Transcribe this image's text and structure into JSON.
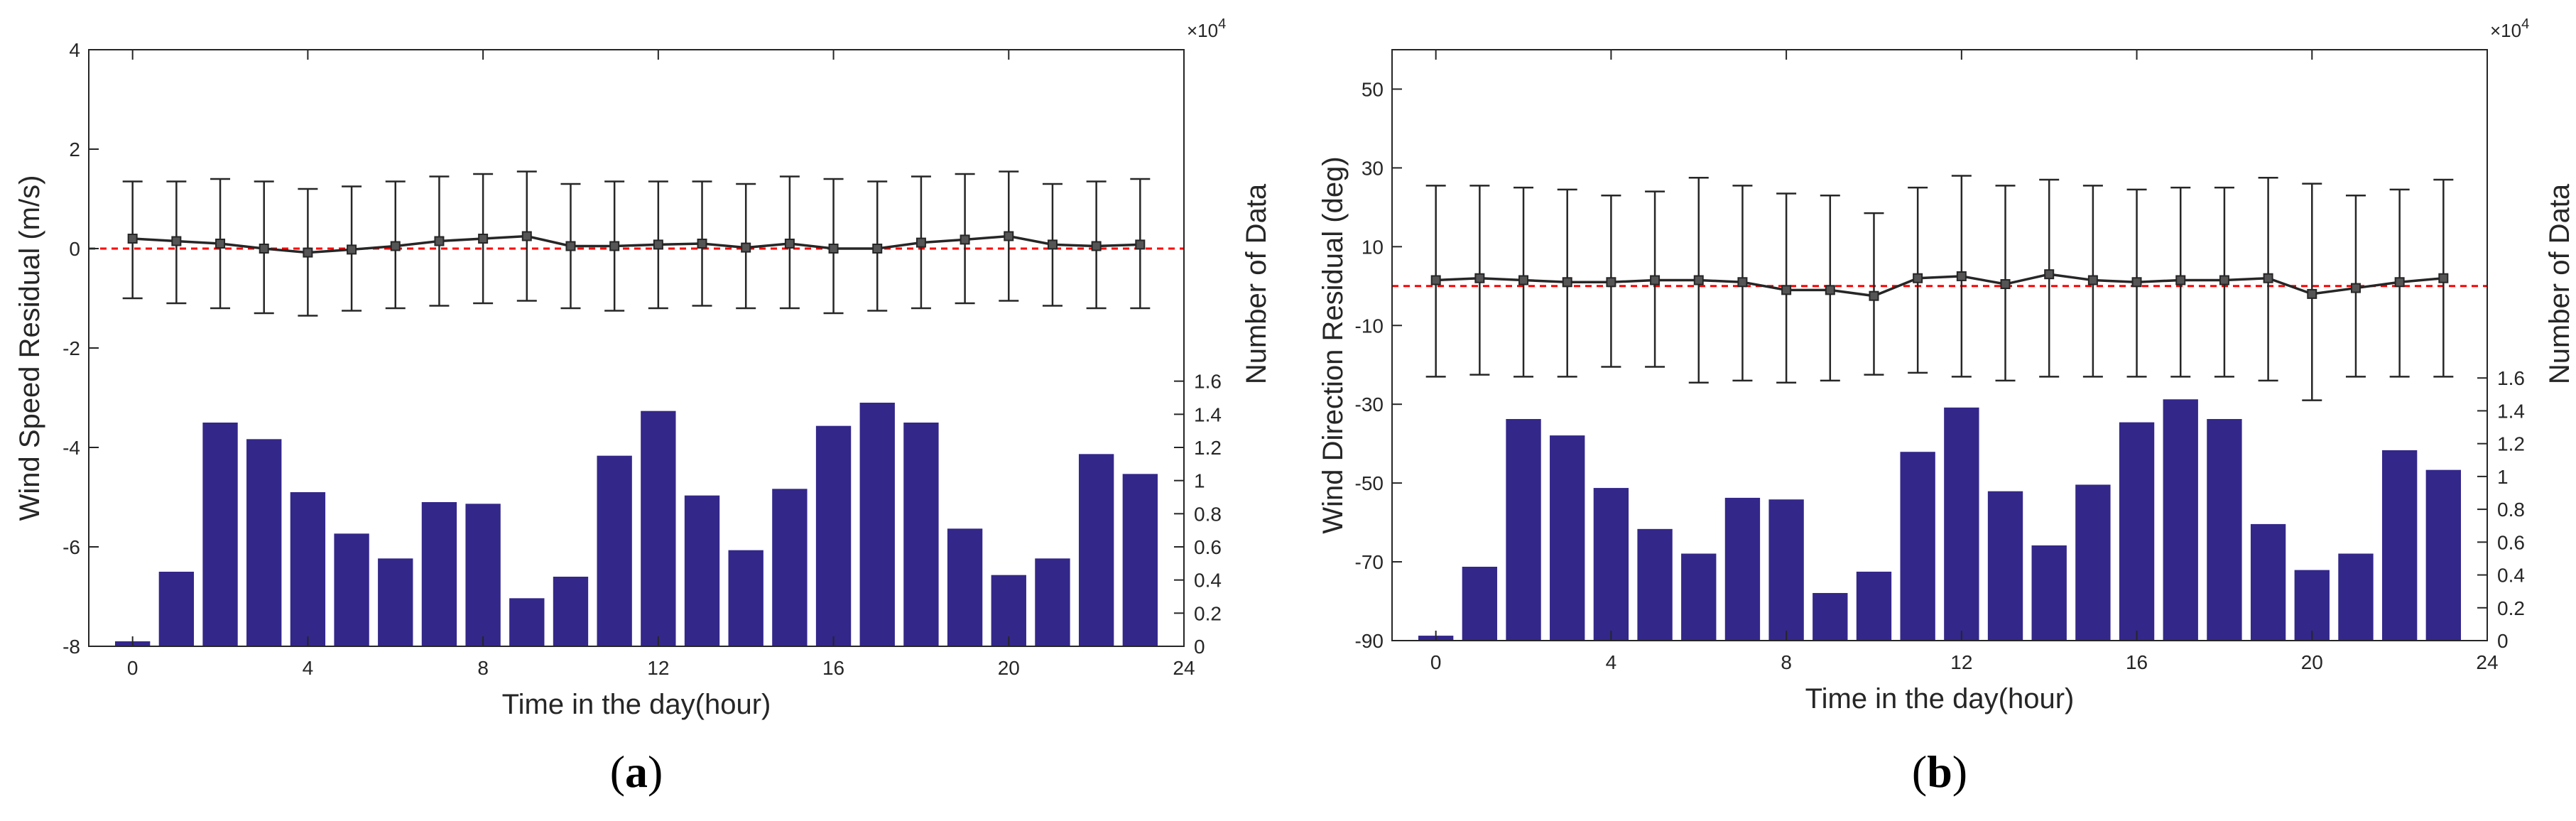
{
  "chart_data": [
    {
      "type": "bar",
      "panel_label": "(a)",
      "panel_letter": "a",
      "xlabel": "Time in the day(hour)",
      "ylabel": "Wind Speed Residual (m/s)",
      "ylabel_right": "Number of Data",
      "right_axis_multiplier": "×10",
      "right_axis_exponent": "4",
      "xlim": [
        -1,
        24
      ],
      "ylim": [
        -8,
        4
      ],
      "ylim_right": [
        0,
        3.6
      ],
      "x_ticks": [
        0,
        4,
        8,
        12,
        16,
        20,
        24
      ],
      "y_ticks": [
        -8,
        -6,
        -4,
        -2,
        0,
        2,
        4
      ],
      "y_ticks_right": [
        0,
        0.2,
        0.4,
        0.6,
        0.8,
        1,
        1.2,
        1.4,
        1.6
      ],
      "y_tick_labels_right": [
        "0",
        "0.2",
        "0.4",
        "0.6",
        "0.8",
        "1",
        "1.2",
        "1.4",
        "1.6"
      ],
      "grid": false,
      "reference_line": {
        "y": 0,
        "style": "dashed",
        "color": "#ff0000"
      },
      "series": [
        {
          "role": "mean",
          "kind": "line-errorbar",
          "color": "#262626",
          "x": [
            0,
            1,
            2,
            3,
            4,
            5,
            6,
            7,
            8,
            9,
            10,
            11,
            12,
            13,
            14,
            15,
            16,
            17,
            18,
            19,
            20,
            21,
            22,
            23
          ],
          "values": [
            0.2,
            0.15,
            0.1,
            0.0,
            -0.08,
            -0.02,
            0.05,
            0.15,
            0.2,
            0.25,
            0.05,
            0.05,
            0.08,
            0.1,
            0.02,
            0.1,
            0.0,
            0.0,
            0.12,
            0.18,
            0.25,
            0.08,
            0.05,
            0.08
          ],
          "lower": [
            -1.0,
            -1.1,
            -1.2,
            -1.3,
            -1.35,
            -1.25,
            -1.2,
            -1.15,
            -1.1,
            -1.05,
            -1.2,
            -1.25,
            -1.2,
            -1.15,
            -1.2,
            -1.2,
            -1.3,
            -1.25,
            -1.2,
            -1.1,
            -1.05,
            -1.15,
            -1.2,
            -1.2
          ],
          "upper": [
            1.35,
            1.35,
            1.4,
            1.35,
            1.2,
            1.25,
            1.35,
            1.45,
            1.5,
            1.55,
            1.3,
            1.35,
            1.35,
            1.35,
            1.3,
            1.45,
            1.4,
            1.35,
            1.45,
            1.5,
            1.55,
            1.3,
            1.35,
            1.4
          ]
        },
        {
          "role": "count",
          "kind": "bar",
          "axis": "right",
          "color": "#33278a",
          "x": [
            0,
            1,
            2,
            3,
            4,
            5,
            6,
            7,
            8,
            9,
            10,
            11,
            12,
            13,
            14,
            15,
            16,
            17,
            18,
            19,
            20,
            21,
            22,
            23
          ],
          "values": [
            0.03,
            0.45,
            1.35,
            1.25,
            0.93,
            0.68,
            0.53,
            0.87,
            0.86,
            0.29,
            0.42,
            1.15,
            1.42,
            0.91,
            0.58,
            0.95,
            1.33,
            1.47,
            1.35,
            0.71,
            0.43,
            0.53,
            1.16,
            1.04
          ]
        }
      ]
    },
    {
      "type": "bar",
      "panel_label": "(b)",
      "panel_letter": "b",
      "xlabel": "Time in the day(hour)",
      "ylabel": "Wind Direction Residual (deg)",
      "ylabel_right": "Number of Data",
      "right_axis_multiplier": "×10",
      "right_axis_exponent": "4",
      "xlim": [
        -1,
        24
      ],
      "ylim": [
        -90,
        60
      ],
      "ylim_right": [
        0,
        3.6
      ],
      "x_ticks": [
        0,
        4,
        8,
        12,
        16,
        20,
        24
      ],
      "y_ticks": [
        -90,
        -70,
        -50,
        -30,
        -10,
        10,
        30,
        50
      ],
      "y_ticks_right": [
        0,
        0.2,
        0.4,
        0.6,
        0.8,
        1,
        1.2,
        1.4,
        1.6
      ],
      "y_tick_labels_right": [
        "0",
        "0.2",
        "0.4",
        "0.6",
        "0.8",
        "1",
        "1.2",
        "1.4",
        "1.6"
      ],
      "grid": false,
      "reference_line": {
        "y": 0,
        "style": "dashed",
        "color": "#ff0000"
      },
      "series": [
        {
          "role": "mean",
          "kind": "line-errorbar",
          "color": "#262626",
          "x": [
            0,
            1,
            2,
            3,
            4,
            5,
            6,
            7,
            8,
            9,
            10,
            11,
            12,
            13,
            14,
            15,
            16,
            17,
            18,
            19,
            20,
            21,
            22,
            23
          ],
          "values": [
            1.5,
            2.0,
            1.5,
            1.0,
            1.0,
            1.5,
            1.5,
            1.0,
            -1.0,
            -1.0,
            -2.5,
            2.0,
            2.5,
            0.5,
            3.0,
            1.5,
            1.0,
            1.5,
            1.5,
            2.0,
            -2.0,
            -0.5,
            1.0,
            2.0
          ],
          "lower": [
            -23,
            -22.5,
            -23,
            -23,
            -20.5,
            -20.5,
            -24.5,
            -24,
            -24.5,
            -24,
            -22.5,
            -22,
            -23,
            -24,
            -23,
            -23,
            -23,
            -23,
            -23,
            -24,
            -29,
            -23,
            -23,
            -23
          ],
          "upper": [
            25.5,
            25.5,
            25,
            24.5,
            23,
            24,
            27.5,
            25.5,
            23.5,
            23,
            18.5,
            25,
            28,
            25.5,
            27,
            25.5,
            24.5,
            25,
            25,
            27.5,
            26,
            23,
            24.5,
            27
          ]
        },
        {
          "role": "count",
          "kind": "bar",
          "axis": "right",
          "color": "#33278a",
          "x": [
            0,
            1,
            2,
            3,
            4,
            5,
            6,
            7,
            8,
            9,
            10,
            11,
            12,
            13,
            14,
            15,
            16,
            17,
            18,
            19,
            20,
            21,
            22,
            23
          ],
          "values": [
            0.03,
            0.45,
            1.35,
            1.25,
            0.93,
            0.68,
            0.53,
            0.87,
            0.86,
            0.29,
            0.42,
            1.15,
            1.42,
            0.91,
            0.58,
            0.95,
            1.33,
            1.47,
            1.35,
            0.71,
            0.43,
            0.53,
            1.16,
            1.04
          ]
        }
      ]
    }
  ]
}
